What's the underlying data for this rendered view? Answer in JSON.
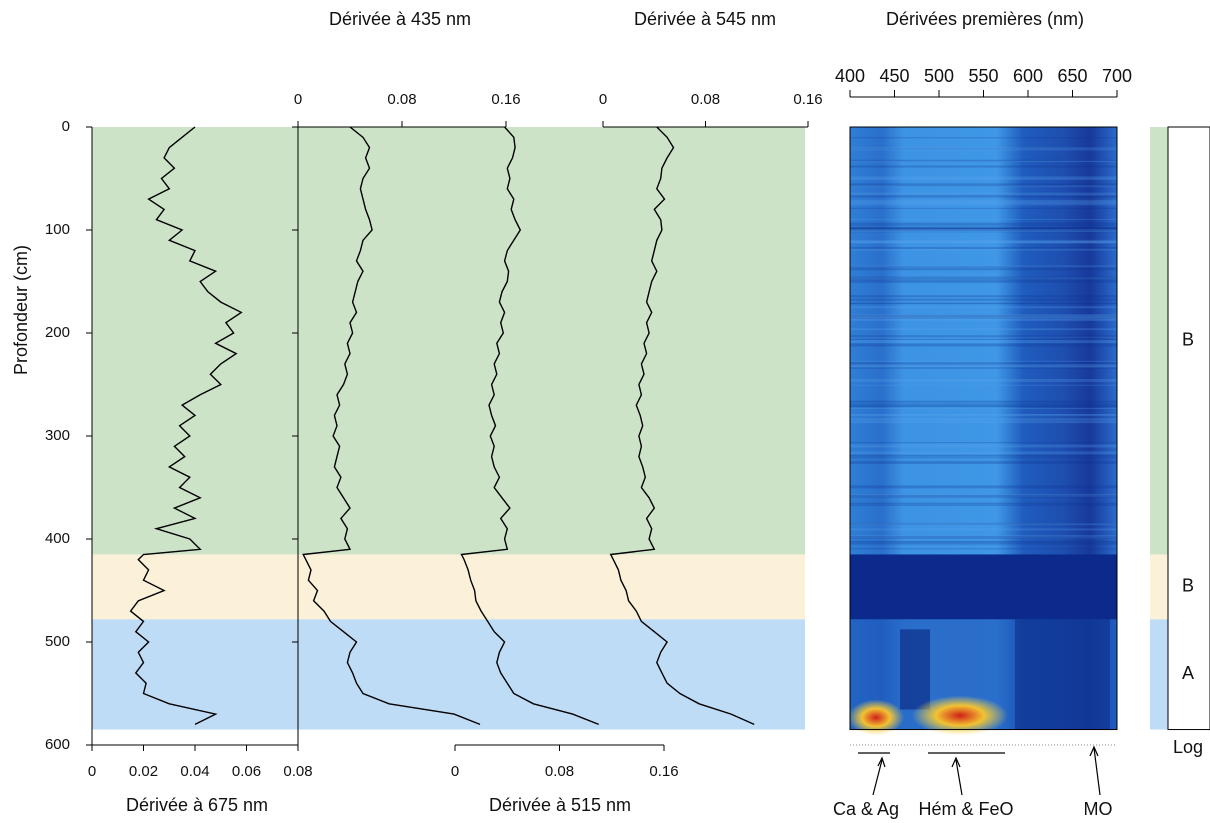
{
  "chart_data": [
    {
      "type": "line",
      "orientation": "vertical",
      "title": "Dérivée à 675 nm",
      "ylabel": "Profondeur (cm)",
      "color": "#000000",
      "xlim": [
        0,
        600
      ],
      "xticks": [
        0,
        100,
        200,
        300,
        400,
        500,
        600
      ],
      "ylim": [
        0,
        0.08
      ],
      "yticks": [
        0,
        0.02,
        0.04,
        0.06,
        0.08
      ],
      "x": [
        0,
        10,
        20,
        30,
        40,
        50,
        60,
        70,
        80,
        90,
        100,
        110,
        120,
        130,
        140,
        150,
        160,
        170,
        180,
        190,
        200,
        210,
        220,
        230,
        240,
        250,
        260,
        270,
        280,
        290,
        300,
        310,
        320,
        330,
        340,
        350,
        360,
        370,
        380,
        390,
        400,
        410,
        415,
        420,
        430,
        440,
        450,
        460,
        470,
        480,
        490,
        500,
        510,
        520,
        530,
        540,
        550,
        560,
        570,
        580
      ],
      "values": [
        0.04,
        0.035,
        0.03,
        0.028,
        0.032,
        0.027,
        0.03,
        0.022,
        0.028,
        0.025,
        0.035,
        0.03,
        0.04,
        0.038,
        0.048,
        0.042,
        0.045,
        0.05,
        0.058,
        0.052,
        0.055,
        0.048,
        0.056,
        0.05,
        0.046,
        0.05,
        0.042,
        0.035,
        0.04,
        0.034,
        0.038,
        0.032,
        0.036,
        0.03,
        0.038,
        0.034,
        0.042,
        0.032,
        0.04,
        0.025,
        0.038,
        0.042,
        0.02,
        0.018,
        0.022,
        0.02,
        0.028,
        0.018,
        0.015,
        0.02,
        0.017,
        0.022,
        0.018,
        0.02,
        0.017,
        0.021,
        0.02,
        0.03,
        0.048,
        0.04
      ]
    },
    {
      "type": "line",
      "orientation": "vertical",
      "title": "Dérivée à 435 nm",
      "color": "#000000",
      "xlim": [
        0,
        600
      ],
      "ylim": [
        0,
        0.16
      ],
      "yticks": [
        0,
        0.08,
        0.16
      ],
      "x": [
        0,
        10,
        20,
        30,
        40,
        50,
        60,
        70,
        80,
        90,
        100,
        110,
        120,
        130,
        140,
        150,
        160,
        170,
        180,
        190,
        200,
        210,
        220,
        230,
        240,
        250,
        260,
        270,
        280,
        290,
        300,
        310,
        320,
        330,
        340,
        350,
        360,
        370,
        380,
        390,
        400,
        410,
        415,
        420,
        430,
        440,
        450,
        460,
        470,
        480,
        490,
        500,
        510,
        520,
        530,
        540,
        550,
        560,
        570,
        580
      ],
      "values": [
        0.04,
        0.05,
        0.055,
        0.052,
        0.055,
        0.05,
        0.048,
        0.05,
        0.052,
        0.055,
        0.057,
        0.05,
        0.048,
        0.045,
        0.05,
        0.046,
        0.044,
        0.042,
        0.045,
        0.04,
        0.042,
        0.038,
        0.04,
        0.036,
        0.038,
        0.035,
        0.03,
        0.032,
        0.028,
        0.03,
        0.027,
        0.032,
        0.03,
        0.028,
        0.033,
        0.03,
        0.035,
        0.04,
        0.033,
        0.038,
        0.036,
        0.04,
        0.004,
        0.006,
        0.01,
        0.008,
        0.015,
        0.012,
        0.02,
        0.025,
        0.035,
        0.045,
        0.04,
        0.038,
        0.042,
        0.045,
        0.05,
        0.07,
        0.12,
        0.14
      ]
    },
    {
      "type": "line",
      "orientation": "vertical",
      "title": "Dérivée à 515 nm",
      "color": "#000000",
      "xlim": [
        0,
        600
      ],
      "ylim": [
        0,
        0.16
      ],
      "yticks": [
        0,
        0.08,
        0.16
      ],
      "x": [
        0,
        10,
        20,
        30,
        40,
        50,
        60,
        70,
        80,
        90,
        100,
        110,
        120,
        130,
        140,
        150,
        160,
        170,
        180,
        190,
        200,
        210,
        220,
        230,
        240,
        250,
        260,
        270,
        280,
        290,
        300,
        310,
        320,
        330,
        340,
        350,
        360,
        370,
        380,
        390,
        400,
        410,
        415,
        420,
        430,
        440,
        450,
        460,
        470,
        480,
        490,
        500,
        510,
        520,
        530,
        540,
        550,
        560,
        570,
        580
      ],
      "values": [
        0.038,
        0.045,
        0.046,
        0.044,
        0.04,
        0.042,
        0.04,
        0.045,
        0.043,
        0.046,
        0.05,
        0.045,
        0.04,
        0.038,
        0.041,
        0.04,
        0.036,
        0.034,
        0.038,
        0.035,
        0.037,
        0.032,
        0.034,
        0.03,
        0.032,
        0.028,
        0.03,
        0.026,
        0.028,
        0.031,
        0.027,
        0.03,
        0.028,
        0.03,
        0.034,
        0.03,
        0.036,
        0.042,
        0.035,
        0.04,
        0.038,
        0.04,
        0.005,
        0.007,
        0.01,
        0.012,
        0.015,
        0.016,
        0.02,
        0.025,
        0.03,
        0.038,
        0.034,
        0.032,
        0.035,
        0.04,
        0.045,
        0.06,
        0.09,
        0.11
      ]
    },
    {
      "type": "line",
      "orientation": "vertical",
      "title": "Dérivée à 545 nm",
      "color": "#000000",
      "xlim": [
        0,
        600
      ],
      "ylim": [
        0,
        0.16
      ],
      "yticks": [
        0,
        0.08,
        0.16
      ],
      "x": [
        0,
        10,
        20,
        30,
        40,
        50,
        60,
        70,
        80,
        90,
        100,
        110,
        120,
        130,
        140,
        150,
        160,
        170,
        180,
        190,
        200,
        210,
        220,
        230,
        240,
        250,
        260,
        270,
        280,
        290,
        300,
        310,
        320,
        330,
        340,
        350,
        360,
        370,
        380,
        390,
        400,
        410,
        415,
        420,
        430,
        440,
        450,
        460,
        470,
        480,
        490,
        500,
        510,
        520,
        530,
        540,
        550,
        560,
        570,
        580
      ],
      "values": [
        0.042,
        0.05,
        0.055,
        0.05,
        0.046,
        0.045,
        0.042,
        0.048,
        0.04,
        0.045,
        0.046,
        0.042,
        0.04,
        0.038,
        0.042,
        0.038,
        0.036,
        0.034,
        0.038,
        0.034,
        0.036,
        0.032,
        0.034,
        0.03,
        0.032,
        0.028,
        0.03,
        0.026,
        0.029,
        0.031,
        0.028,
        0.03,
        0.028,
        0.031,
        0.033,
        0.03,
        0.036,
        0.04,
        0.034,
        0.038,
        0.036,
        0.04,
        0.006,
        0.008,
        0.012,
        0.014,
        0.018,
        0.02,
        0.026,
        0.03,
        0.04,
        0.05,
        0.045,
        0.042,
        0.046,
        0.05,
        0.06,
        0.075,
        0.1,
        0.118
      ]
    },
    {
      "type": "heatmap",
      "title": "Dérivées premières (nm)",
      "xlim": [
        400,
        700
      ],
      "xticks": [
        400,
        450,
        500,
        550,
        600,
        650,
        700
      ],
      "annotations": [
        "Ca & Ag",
        "Hém & FeO",
        "MO"
      ]
    }
  ],
  "zones": [
    {
      "label": "B",
      "from": 0,
      "to": 415,
      "color": "#cde3c8"
    },
    {
      "label": "B",
      "from": 415,
      "to": 478,
      "color": "#fbf1d9"
    },
    {
      "label": "A",
      "from": 478,
      "to": 585,
      "color": "#bfdcf7"
    }
  ],
  "log_label": "Log"
}
